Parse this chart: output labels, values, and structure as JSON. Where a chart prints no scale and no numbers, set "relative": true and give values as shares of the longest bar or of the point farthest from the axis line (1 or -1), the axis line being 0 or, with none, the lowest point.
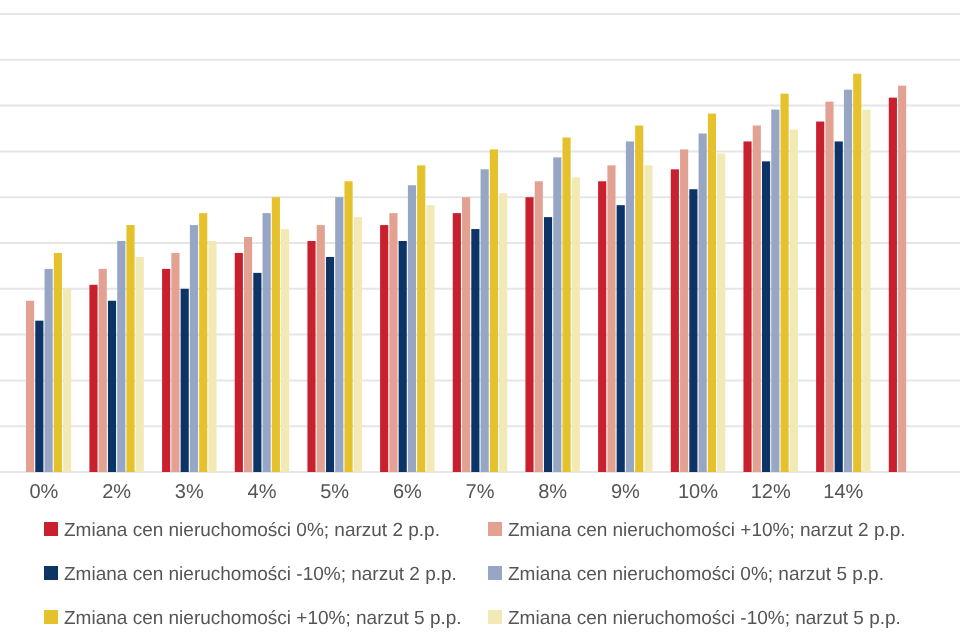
{
  "chart_data": {
    "type": "bar",
    "relative": true,
    "grid": "y",
    "legend": "bottom",
    "categories": [
      "0%",
      "2%",
      "3%",
      "4%",
      "5%",
      "6%",
      "7%",
      "8%",
      "9%",
      "10%",
      "12%",
      "14%",
      null
    ],
    "series": [
      {
        "name": "Zmiana cen nieruchomości 0%; narzut 2 p.p.",
        "color": "#c8202f",
        "values": [
          null,
          0.47,
          0.51,
          0.55,
          0.58,
          0.62,
          0.65,
          0.69,
          0.73,
          0.76,
          0.83,
          0.88,
          0.94
        ]
      },
      {
        "name": "Zmiana cen nieruchomości +10%; narzut 2 p.p.",
        "color": "#e3a291",
        "values": [
          0.43,
          0.51,
          0.55,
          0.59,
          0.62,
          0.65,
          0.69,
          0.73,
          0.77,
          0.81,
          0.87,
          0.93,
          0.97
        ]
      },
      {
        "name": "Zmiana cen nieruchomości -10%; narzut 2 p.p.",
        "color": "#0d3466",
        "values": [
          0.38,
          0.43,
          0.46,
          0.5,
          0.54,
          0.58,
          0.61,
          0.64,
          0.67,
          0.71,
          0.78,
          0.83,
          null
        ]
      },
      {
        "name": "Zmiana cen nieruchomości 0%; narzut 5 p.p.",
        "color": "#97a6c4",
        "values": [
          0.51,
          0.58,
          0.62,
          0.65,
          0.69,
          0.72,
          0.76,
          0.79,
          0.83,
          0.85,
          0.91,
          0.96,
          null
        ]
      },
      {
        "name": "Zmiana cen nieruchomości +10%; narzut 5 p.p.",
        "color": "#e5c12c",
        "values": [
          0.55,
          0.62,
          0.65,
          0.69,
          0.73,
          0.77,
          0.81,
          0.84,
          0.87,
          0.9,
          0.95,
          1,
          null
        ]
      },
      {
        "name": "Zmiana cen nieruchomości -10%; narzut 5 p.p.",
        "color": "#f3e9b5",
        "values": [
          0.46,
          0.54,
          0.58,
          0.61,
          0.64,
          0.67,
          0.7,
          0.74,
          0.77,
          0.8,
          0.86,
          0.91,
          null
        ]
      }
    ]
  }
}
